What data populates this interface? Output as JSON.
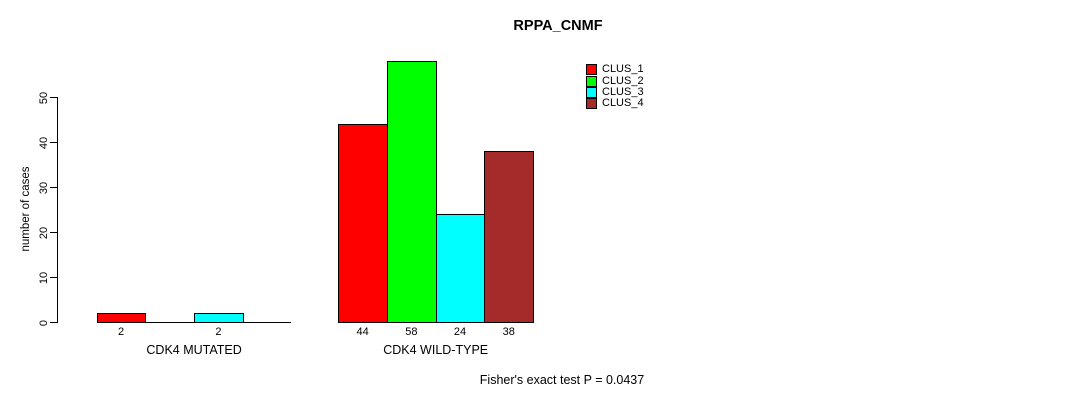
{
  "title": "RPPA_CNMF",
  "y_axis": {
    "label": "number of cases",
    "ticks": [
      0,
      10,
      20,
      30,
      40,
      50
    ]
  },
  "legend": {
    "items": [
      {
        "label": "CLUS_1",
        "color": "#FF0000"
      },
      {
        "label": "CLUS_2",
        "color": "#00FF00"
      },
      {
        "label": "CLUS_3",
        "color": "#00FFFF"
      },
      {
        "label": "CLUS_4",
        "color": "#A52A2A"
      }
    ]
  },
  "footnote": "Fisher's exact test P = 0.0437",
  "chart_data": {
    "type": "bar",
    "title": "RPPA_CNMF",
    "ylabel": "number of cases",
    "xlabel": "",
    "ylim": [
      0,
      58
    ],
    "yticks": [
      0,
      10,
      20,
      30,
      40,
      50
    ],
    "grid": false,
    "legend_position": "top-right",
    "categories": [
      "CDK4 MUTATED",
      "CDK4 WILD-TYPE"
    ],
    "series": [
      {
        "name": "CLUS_1",
        "color": "#FF0000",
        "values": [
          2,
          44
        ]
      },
      {
        "name": "CLUS_2",
        "color": "#00FF00",
        "values": [
          0,
          58
        ]
      },
      {
        "name": "CLUS_3",
        "color": "#00FFFF",
        "values": [
          2,
          24
        ]
      },
      {
        "name": "CLUS_4",
        "color": "#A52A2A",
        "values": [
          0,
          38
        ]
      }
    ],
    "bar_value_labels": [
      [
        "2",
        "",
        "2",
        ""
      ],
      [
        "44",
        "58",
        "24",
        "38"
      ]
    ],
    "footnote": "Fisher's exact test P = 0.0437"
  }
}
